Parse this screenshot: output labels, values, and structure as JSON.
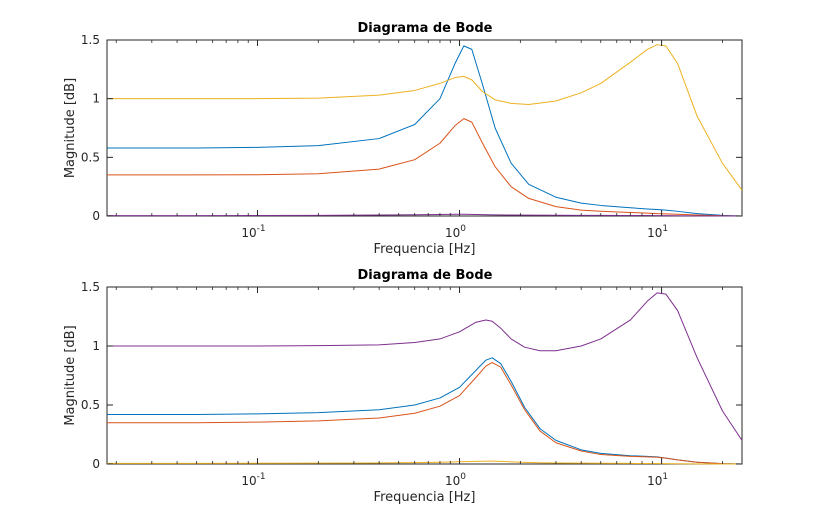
{
  "colors": {
    "blue": "#0072BD",
    "orange": "#D95319",
    "yellow": "#EDB120",
    "purple": "#7E2F8E"
  },
  "chart_data": [
    {
      "type": "line",
      "title": "Diagrama de Bode",
      "xlabel": "Frequencia [Hz]",
      "ylabel": "Magnitude [dB]",
      "xscale": "log",
      "xlim": [
        0.018,
        25
      ],
      "ylim": [
        0,
        1.5
      ],
      "grid": false,
      "x_ticks": [
        {
          "base": "10",
          "exp": "-1"
        },
        {
          "base": "10",
          "exp": "0"
        },
        {
          "base": "10",
          "exp": "1"
        }
      ],
      "y_ticks": [
        "0",
        "0.5",
        "1",
        "1.5"
      ],
      "x": [
        0.018,
        0.05,
        0.1,
        0.2,
        0.4,
        0.6,
        0.8,
        0.95,
        1.05,
        1.15,
        1.3,
        1.5,
        1.8,
        2.2,
        3,
        4,
        5,
        7,
        8.5,
        9.5,
        10.5,
        12,
        15,
        20,
        25
      ],
      "series": [
        {
          "color": "blue",
          "values": [
            0.58,
            0.58,
            0.585,
            0.6,
            0.66,
            0.78,
            1.0,
            1.3,
            1.45,
            1.42,
            1.12,
            0.75,
            0.45,
            0.27,
            0.16,
            0.11,
            0.09,
            0.07,
            0.06,
            0.055,
            0.05,
            0.04,
            0.02,
            0.005,
            0.0
          ]
        },
        {
          "color": "orange",
          "values": [
            0.35,
            0.35,
            0.352,
            0.36,
            0.4,
            0.48,
            0.62,
            0.77,
            0.83,
            0.8,
            0.62,
            0.42,
            0.25,
            0.15,
            0.08,
            0.05,
            0.04,
            0.03,
            0.025,
            0.02,
            0.018,
            0.015,
            0.008,
            0.002,
            0.0
          ]
        },
        {
          "color": "yellow",
          "values": [
            1.0,
            1.0,
            1.0,
            1.005,
            1.03,
            1.07,
            1.13,
            1.18,
            1.19,
            1.16,
            1.06,
            0.99,
            0.96,
            0.95,
            0.98,
            1.05,
            1.13,
            1.31,
            1.42,
            1.46,
            1.45,
            1.3,
            0.85,
            0.45,
            0.22
          ]
        },
        {
          "color": "purple",
          "values": [
            0.003,
            0.003,
            0.004,
            0.005,
            0.008,
            0.011,
            0.013,
            0.015,
            0.015,
            0.014,
            0.012,
            0.01,
            0.008,
            0.007,
            0.006,
            0.005,
            0.005,
            0.004,
            0.004,
            0.003,
            0.003,
            0.002,
            0.001,
            0.0,
            0.0
          ]
        }
      ]
    },
    {
      "type": "line",
      "title": "Diagrama de Bode",
      "xlabel": "Frequencia [Hz]",
      "ylabel": "Magnitude [dB]",
      "xscale": "log",
      "xlim": [
        0.018,
        25
      ],
      "ylim": [
        0,
        1.5
      ],
      "grid": false,
      "x_ticks": [
        {
          "base": "10",
          "exp": "-1"
        },
        {
          "base": "10",
          "exp": "0"
        },
        {
          "base": "10",
          "exp": "1"
        }
      ],
      "y_ticks": [
        "0",
        "0.5",
        "1",
        "1.5"
      ],
      "x": [
        0.018,
        0.05,
        0.1,
        0.2,
        0.4,
        0.6,
        0.8,
        1.0,
        1.2,
        1.35,
        1.45,
        1.6,
        1.8,
        2.1,
        2.5,
        3,
        4,
        5,
        7,
        8.5,
        9.5,
        10.5,
        12,
        15,
        20,
        25
      ],
      "series": [
        {
          "color": "blue",
          "values": [
            0.42,
            0.42,
            0.425,
            0.435,
            0.46,
            0.5,
            0.56,
            0.65,
            0.79,
            0.88,
            0.9,
            0.85,
            0.7,
            0.48,
            0.3,
            0.2,
            0.12,
            0.09,
            0.07,
            0.065,
            0.06,
            0.05,
            0.035,
            0.015,
            0.003,
            0.0
          ]
        },
        {
          "color": "orange",
          "values": [
            0.35,
            0.35,
            0.355,
            0.365,
            0.39,
            0.43,
            0.49,
            0.58,
            0.73,
            0.83,
            0.86,
            0.82,
            0.67,
            0.46,
            0.28,
            0.18,
            0.11,
            0.08,
            0.065,
            0.06,
            0.057,
            0.05,
            0.035,
            0.015,
            0.003,
            0.0
          ]
        },
        {
          "color": "purple",
          "values": [
            1.0,
            1.0,
            1.0,
            1.003,
            1.01,
            1.03,
            1.06,
            1.12,
            1.2,
            1.22,
            1.21,
            1.15,
            1.06,
            0.99,
            0.96,
            0.96,
            1.0,
            1.06,
            1.22,
            1.38,
            1.45,
            1.44,
            1.3,
            0.9,
            0.45,
            0.2
          ]
        },
        {
          "color": "yellow",
          "values": [
            0.005,
            0.005,
            0.006,
            0.007,
            0.009,
            0.012,
            0.015,
            0.019,
            0.022,
            0.024,
            0.024,
            0.022,
            0.018,
            0.014,
            0.011,
            0.009,
            0.007,
            0.006,
            0.005,
            0.004,
            0.004,
            0.003,
            0.002,
            0.001,
            0.0,
            0.0
          ]
        }
      ]
    }
  ]
}
